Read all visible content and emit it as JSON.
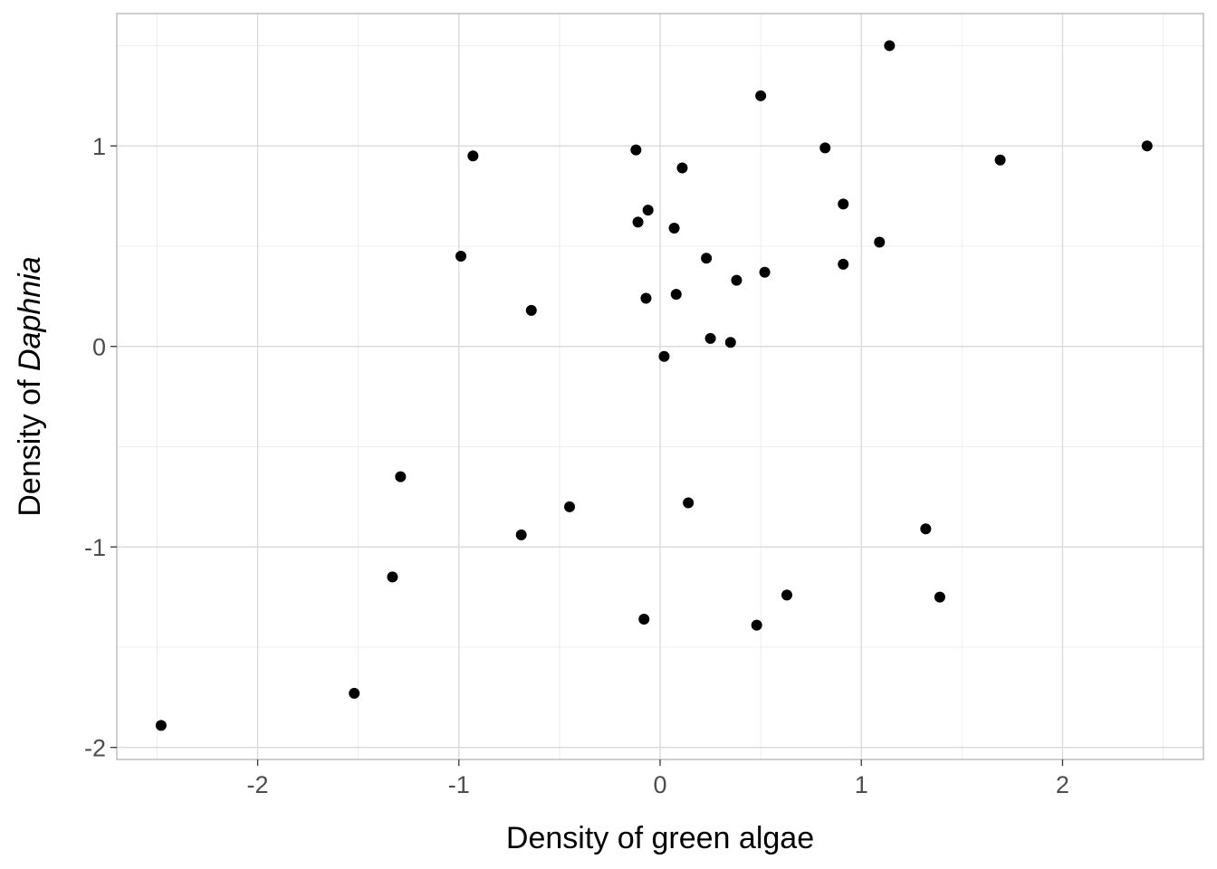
{
  "chart_data": {
    "type": "scatter",
    "title": "",
    "xlabel": "Density of green algae",
    "ylabel_prefix": "Density of ",
    "ylabel_italic": "Daphnia",
    "xlim": [
      -2.7,
      2.7
    ],
    "ylim": [
      -2.06,
      1.66
    ],
    "x_ticks": [
      -2,
      -1,
      0,
      1,
      2
    ],
    "y_ticks": [
      -2,
      -1,
      0,
      1
    ],
    "x_tick_labels": [
      "-2",
      "-1",
      "0",
      "1",
      "2"
    ],
    "y_tick_labels": [
      "-2",
      "-1",
      "0",
      "1"
    ],
    "grid": true,
    "legend": "none",
    "point_color": "#000000",
    "panel_border_color": "#b3b3b3",
    "points": [
      {
        "x": -2.48,
        "y": -1.89
      },
      {
        "x": -1.52,
        "y": -1.73
      },
      {
        "x": -1.33,
        "y": -1.15
      },
      {
        "x": -1.29,
        "y": -0.65
      },
      {
        "x": -0.99,
        "y": 0.45
      },
      {
        "x": -0.93,
        "y": 0.95
      },
      {
        "x": -0.69,
        "y": -0.94
      },
      {
        "x": -0.64,
        "y": 0.18
      },
      {
        "x": -0.45,
        "y": -0.8
      },
      {
        "x": -0.12,
        "y": 0.98
      },
      {
        "x": -0.11,
        "y": 0.62
      },
      {
        "x": -0.07,
        "y": 0.24
      },
      {
        "x": -0.08,
        "y": -1.36
      },
      {
        "x": -0.06,
        "y": 0.68
      },
      {
        "x": 0.02,
        "y": -0.05
      },
      {
        "x": 0.07,
        "y": 0.59
      },
      {
        "x": 0.08,
        "y": 0.26
      },
      {
        "x": 0.11,
        "y": 0.89
      },
      {
        "x": 0.14,
        "y": -0.78
      },
      {
        "x": 0.23,
        "y": 0.44
      },
      {
        "x": 0.25,
        "y": 0.04
      },
      {
        "x": 0.35,
        "y": 0.02
      },
      {
        "x": 0.38,
        "y": 0.33
      },
      {
        "x": 0.48,
        "y": -1.39
      },
      {
        "x": 0.5,
        "y": 1.25
      },
      {
        "x": 0.52,
        "y": 0.37
      },
      {
        "x": 0.63,
        "y": -1.24
      },
      {
        "x": 0.82,
        "y": 0.99
      },
      {
        "x": 0.91,
        "y": 0.71
      },
      {
        "x": 0.91,
        "y": 0.41
      },
      {
        "x": 1.09,
        "y": 0.52
      },
      {
        "x": 1.14,
        "y": 1.5
      },
      {
        "x": 1.32,
        "y": -0.91
      },
      {
        "x": 1.39,
        "y": -1.25
      },
      {
        "x": 1.69,
        "y": 0.93
      },
      {
        "x": 2.42,
        "y": 1.0
      }
    ]
  }
}
